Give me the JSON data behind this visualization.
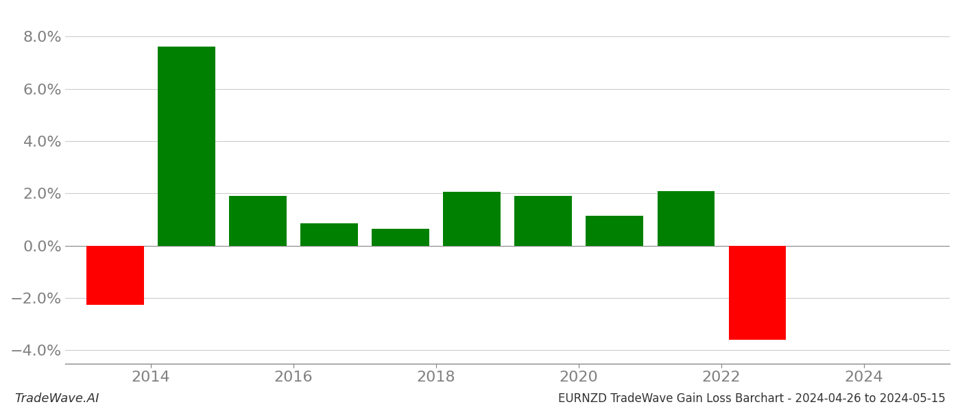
{
  "bar_centers": [
    2013.5,
    2014.5,
    2015.5,
    2016.5,
    2017.5,
    2018.5,
    2019.5,
    2020.5,
    2021.5,
    2022.5
  ],
  "values": [
    -0.0225,
    0.076,
    0.019,
    0.0085,
    0.0065,
    0.0205,
    0.019,
    0.0115,
    0.021,
    -0.036
  ],
  "colors": [
    "#ff0000",
    "#008000",
    "#008000",
    "#008000",
    "#008000",
    "#008000",
    "#008000",
    "#008000",
    "#008000",
    "#ff0000"
  ],
  "ylim": [
    -0.045,
    0.09
  ],
  "yticks": [
    -0.04,
    -0.02,
    0.0,
    0.02,
    0.04,
    0.06,
    0.08
  ],
  "xlim": [
    2012.8,
    2025.2
  ],
  "xticks": [
    2014,
    2016,
    2018,
    2020,
    2022,
    2024
  ],
  "title": "EURNZD TradeWave Gain Loss Barchart - 2024-04-26 to 2024-05-15",
  "watermark": "TradeWave.AI",
  "bar_width": 0.8,
  "background_color": "#ffffff",
  "grid_color": "#cccccc",
  "axis_color": "#888888",
  "tick_color": "#808080",
  "title_fontsize": 12,
  "watermark_fontsize": 13,
  "tick_fontsize": 16
}
